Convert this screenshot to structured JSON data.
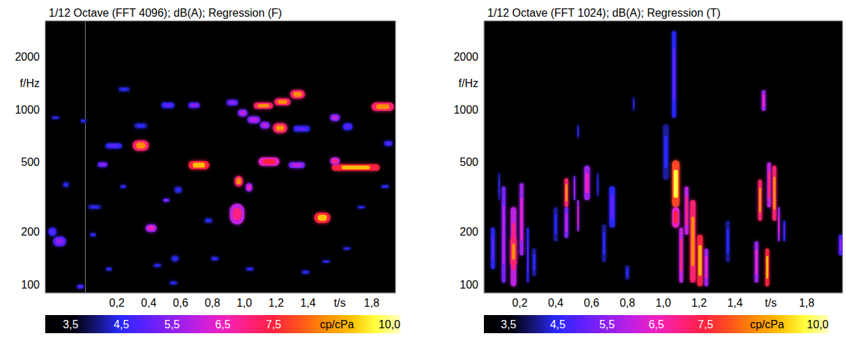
{
  "chart_data": [
    {
      "type": "heatmap",
      "title": "1/12 Octave (FFT 4096); dB(A); Regression (F)",
      "xlabel": "t/s",
      "ylabel": "f/Hz",
      "log": "y",
      "grid": false,
      "xlim": [
        -0.25,
        1.95
      ],
      "xticks": [
        {
          "value": 0.2,
          "label": "0,2"
        },
        {
          "value": 0.4,
          "label": "0,4"
        },
        {
          "value": 0.6,
          "label": "0,6"
        },
        {
          "value": 0.8,
          "label": "0,8"
        },
        {
          "value": 1.0,
          "label": "1,0"
        },
        {
          "value": 1.2,
          "label": "1,2"
        },
        {
          "value": 1.4,
          "label": "1,4"
        },
        {
          "value": 1.8,
          "label": "1,8"
        }
      ],
      "ylim": [
        90,
        3200
      ],
      "yticks": [
        100,
        200,
        500,
        1000,
        2000
      ],
      "cells": [
        [
          -0.2,
          -0.12,
          166,
          188,
          5.5
        ],
        [
          -0.23,
          -0.18,
          190,
          212,
          5.0
        ],
        [
          -0.05,
          -0.01,
          95,
          100,
          5.0
        ],
        [
          0.21,
          0.28,
          1265,
          1340,
          4.5
        ],
        [
          0.13,
          0.23,
          600,
          640,
          5.0
        ],
        [
          0.3,
          0.4,
          582,
          666,
          8.5
        ],
        [
          0.31,
          0.39,
          780,
          835,
          4.5
        ],
        [
          0.08,
          0.14,
          470,
          500,
          5.5
        ],
        [
          0.02,
          0.1,
          270,
          285,
          4.5
        ],
        [
          0.38,
          0.45,
          200,
          221,
          6.5
        ],
        [
          0.48,
          0.56,
          1020,
          1094,
          5.0
        ],
        [
          0.65,
          0.78,
          456,
          508,
          9.0
        ],
        [
          0.65,
          0.72,
          1020,
          1094,
          5.5
        ],
        [
          0.54,
          0.59,
          135,
          147,
          4.5
        ],
        [
          0.56,
          0.61,
          332,
          364,
          4.5
        ],
        [
          0.94,
          0.99,
          364,
          417,
          8.5
        ],
        [
          1.01,
          1.05,
          340,
          380,
          6.5
        ],
        [
          0.91,
          1.0,
          221,
          290,
          7.0
        ],
        [
          0.96,
          1.02,
          912,
          1000,
          6.0
        ],
        [
          1.02,
          1.1,
          835,
          912,
          6.0
        ],
        [
          1.1,
          1.16,
          777,
          850,
          6.0
        ],
        [
          1.18,
          1.27,
          735,
          835,
          8.5
        ],
        [
          0.89,
          0.96,
          1056,
          1135,
          5.5
        ],
        [
          1.09,
          1.22,
          477,
          532,
          7.5
        ],
        [
          1.06,
          1.18,
          1010,
          1094,
          8.5
        ],
        [
          1.19,
          1.29,
          1056,
          1155,
          8.5
        ],
        [
          1.29,
          1.38,
          1155,
          1290,
          8.5
        ],
        [
          1.28,
          1.38,
          464,
          500,
          6.0
        ],
        [
          1.31,
          1.41,
          749,
          805,
          5.0
        ],
        [
          1.44,
          1.54,
          225,
          258,
          9.0
        ],
        [
          1.55,
          1.85,
          448,
          486,
          9.0
        ],
        [
          1.54,
          1.6,
          486,
          532,
          7.0
        ],
        [
          1.54,
          1.6,
          858,
          939,
          6.0
        ],
        [
          1.8,
          1.94,
          982,
          1094,
          8.5
        ],
        [
          1.62,
          1.68,
          763,
          835,
          5.0
        ],
        [
          -0.14,
          -0.1,
          360,
          385,
          4.5
        ],
        [
          -0.03,
          0.01,
          840,
          880,
          4.5
        ],
        [
          0.75,
          0.8,
          225,
          240,
          4.5
        ],
        [
          0.79,
          0.84,
          137,
          145,
          4.5
        ],
        [
          0.13,
          0.17,
          120,
          126,
          4.5
        ],
        [
          0.43,
          0.48,
          126,
          132,
          4.5
        ],
        [
          1.01,
          1.06,
          120,
          126,
          4.5
        ],
        [
          1.36,
          1.41,
          115,
          121,
          4.5
        ],
        [
          1.62,
          1.67,
          158,
          164,
          4.5
        ],
        [
          1.49,
          1.54,
          133,
          138,
          4.5
        ],
        [
          1.71,
          1.76,
          272,
          282,
          4.5
        ],
        [
          1.86,
          1.91,
          355,
          372,
          4.5
        ],
        [
          1.88,
          1.93,
          620,
          660,
          5.0
        ],
        [
          -0.21,
          -0.16,
          880,
          915,
          4.5
        ],
        [
          0.49,
          0.53,
          297,
          310,
          5.5
        ],
        [
          0.22,
          0.26,
          355,
          372,
          4.5
        ],
        [
          0.03,
          0.07,
          188,
          198,
          4.5
        ],
        [
          0.53,
          0.58,
          100,
          105,
          4.5
        ]
      ],
      "colorbar": {
        "label": "cp/cPa",
        "range": [
          3,
          10
        ],
        "ticks": [
          {
            "value": 3.5,
            "label": "3,5"
          },
          {
            "value": 4.5,
            "label": "4,5"
          },
          {
            "value": 5.5,
            "label": "5,5"
          },
          {
            "value": 6.5,
            "label": "6,5"
          },
          {
            "value": 7.5,
            "label": "7,5"
          },
          {
            "value": 10,
            "label": "10,0"
          }
        ]
      }
    },
    {
      "type": "heatmap",
      "title": "1/12 Octave (FFT 1024); dB(A); Regression (T)",
      "xlabel": "t/s",
      "ylabel": "f/Hz",
      "log": "y",
      "grid": false,
      "xlim": [
        0,
        2.0
      ],
      "xticks": [
        {
          "value": 0.2,
          "label": "0,2"
        },
        {
          "value": 0.4,
          "label": "0,4"
        },
        {
          "value": 0.6,
          "label": "0,6"
        },
        {
          "value": 0.8,
          "label": "0,8"
        },
        {
          "value": 1.0,
          "label": "1,0"
        },
        {
          "value": 1.2,
          "label": "1,2"
        },
        {
          "value": 1.4,
          "label": "1,4"
        },
        {
          "value": 1.8,
          "label": "1,8"
        }
      ],
      "ylim": [
        90,
        3200
      ],
      "yticks": [
        100,
        200,
        500,
        1000,
        2000
      ],
      "cells": [
        [
          0.04,
          0.06,
          123,
          212,
          5.0
        ],
        [
          0.1,
          0.12,
          103,
          364,
          6.0
        ],
        [
          0.15,
          0.18,
          98,
          277,
          7.0
        ],
        [
          0.15,
          0.18,
          129,
          185,
          8.5
        ],
        [
          0.2,
          0.22,
          147,
          380,
          6.5
        ],
        [
          0.24,
          0.25,
          103,
          212,
          5.0
        ],
        [
          0.08,
          0.09,
          304,
          436,
          4.5
        ],
        [
          0.39,
          0.41,
          177,
          277,
          4.5
        ],
        [
          0.45,
          0.47,
          277,
          405,
          8.5
        ],
        [
          0.45,
          0.47,
          185,
          277,
          6.0
        ],
        [
          0.5,
          0.51,
          304,
          417,
          6.0
        ],
        [
          0.52,
          0.53,
          202,
          304,
          6.5
        ],
        [
          0.56,
          0.59,
          304,
          477,
          6.5
        ],
        [
          0.63,
          0.64,
          318,
          436,
          4.5
        ],
        [
          0.66,
          0.68,
          135,
          221,
          4.5
        ],
        [
          0.7,
          0.73,
          212,
          364,
          5.0
        ],
        [
          0.79,
          0.81,
          107,
          129,
          4.5
        ],
        [
          1.0,
          1.03,
          398,
          820,
          4.5
        ],
        [
          1.05,
          1.07,
          897,
          2800,
          5.0
        ],
        [
          1.05,
          1.09,
          277,
          513,
          9.5
        ],
        [
          1.05,
          1.09,
          212,
          277,
          7.5
        ],
        [
          1.09,
          1.11,
          103,
          212,
          7.0
        ],
        [
          1.12,
          1.14,
          193,
          364,
          7.0
        ],
        [
          1.15,
          1.18,
          103,
          304,
          8.5
        ],
        [
          1.19,
          1.22,
          98,
          193,
          9.0
        ],
        [
          1.23,
          1.25,
          98,
          161,
          6.5
        ],
        [
          1.35,
          1.37,
          135,
          232,
          4.5
        ],
        [
          1.55,
          1.57,
          982,
          1290,
          6.5
        ],
        [
          1.53,
          1.55,
          232,
          398,
          8.5
        ],
        [
          1.51,
          1.53,
          103,
          177,
          6.5
        ],
        [
          1.58,
          1.6,
          277,
          499,
          7.0
        ],
        [
          1.61,
          1.63,
          232,
          477,
          8.5
        ],
        [
          1.64,
          1.65,
          177,
          277,
          6.5
        ],
        [
          1.57,
          1.59,
          98,
          161,
          9.0
        ],
        [
          1.67,
          1.68,
          177,
          232,
          5.0
        ],
        [
          1.98,
          2.0,
          147,
          193,
          5.5
        ],
        [
          0.52,
          0.53,
          685,
          820,
          4.5
        ],
        [
          0.83,
          0.84,
          982,
          1177,
          4.5
        ],
        [
          0.27,
          0.29,
          112,
          161,
          4.5
        ]
      ],
      "colorbar": {
        "label": "cp/cPa",
        "range": [
          3,
          10
        ],
        "ticks": [
          {
            "value": 3.5,
            "label": "3,5"
          },
          {
            "value": 4.5,
            "label": "4,5"
          },
          {
            "value": 5.5,
            "label": "5,5"
          },
          {
            "value": 6.5,
            "label": "6,5"
          },
          {
            "value": 7.5,
            "label": "7,5"
          },
          {
            "value": 10,
            "label": "10,0"
          }
        ]
      }
    }
  ]
}
